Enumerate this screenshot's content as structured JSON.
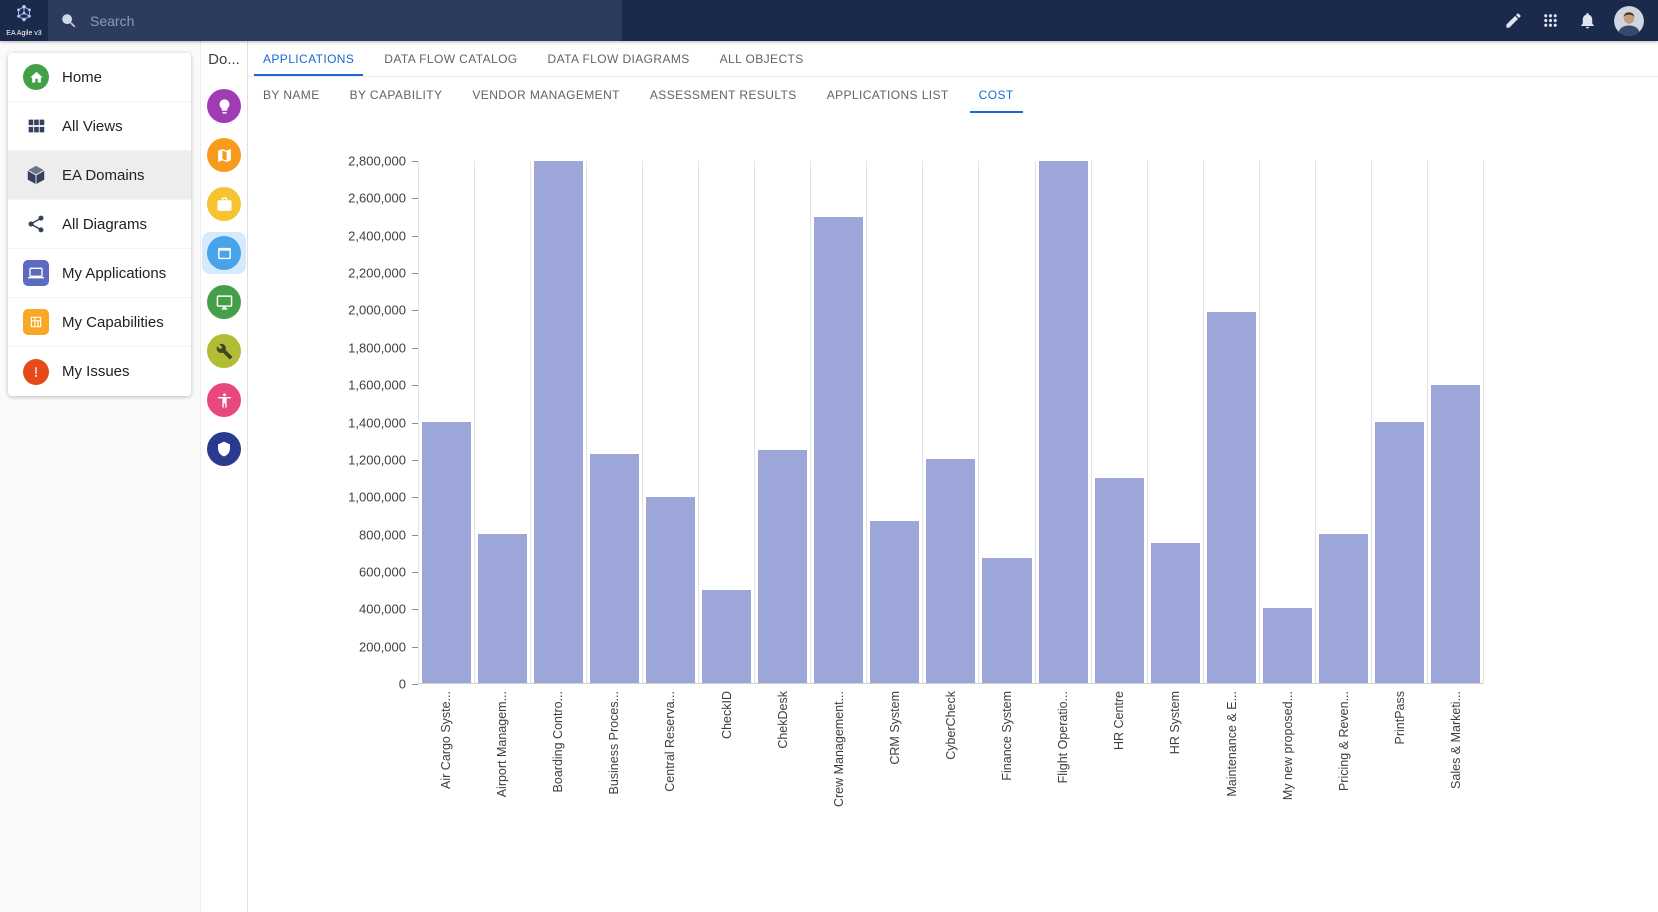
{
  "topbar": {
    "logo_text": "EA Agile v3",
    "search_placeholder": "Search",
    "action_icons": [
      "edit-icon",
      "apps-grid-icon",
      "notifications-icon",
      "user-avatar"
    ]
  },
  "colors": {
    "topbar_bg": "#1b2a4a",
    "search_bg": "#2c3b5e",
    "accent": "#1967d2",
    "sidebar_selected_bg": "#ededed",
    "rail_selected_bg": "#d7eafb"
  },
  "sidebar": {
    "items": [
      {
        "label": "Home",
        "icon": "home-icon",
        "color": "#43a047",
        "selected": false
      },
      {
        "label": "All Views",
        "icon": "views-grid-icon",
        "color": "#33415e",
        "selected": false
      },
      {
        "label": "EA Domains",
        "icon": "cube-icon",
        "color": "#33415e",
        "selected": true
      },
      {
        "label": "All Diagrams",
        "icon": "diagram-icon",
        "color": "#33415e",
        "selected": false
      },
      {
        "label": "My Applications",
        "icon": "laptop-icon",
        "color": "#5c6bc0",
        "selected": false
      },
      {
        "label": "My Capabilities",
        "icon": "capability-grid-icon",
        "color": "#f9a825",
        "selected": false
      },
      {
        "label": "My Issues",
        "icon": "issue-exclamation-icon",
        "color": "#e64a19",
        "selected": false
      }
    ]
  },
  "domain_rail": {
    "header": "Do...",
    "items": [
      {
        "icon": "lightbulb-icon",
        "color": "#a13bb5",
        "selected": false
      },
      {
        "icon": "map-icon",
        "color": "#f89b1c",
        "selected": false
      },
      {
        "icon": "briefcase-icon",
        "color": "#f6c431",
        "selected": false
      },
      {
        "icon": "app-window-icon",
        "color": "#47a4ea",
        "selected": true
      },
      {
        "icon": "monitor-icon",
        "color": "#43a047",
        "selected": false
      },
      {
        "icon": "wrench-icon",
        "color": "#b2bc35",
        "selected": false
      },
      {
        "icon": "person-icon",
        "color": "#e8487c",
        "selected": false
      },
      {
        "icon": "shield-icon",
        "color": "#2b3a8f",
        "selected": false
      }
    ]
  },
  "tabs_primary": [
    {
      "label": "APPLICATIONS",
      "active": true
    },
    {
      "label": "DATA FLOW CATALOG",
      "active": false
    },
    {
      "label": "DATA FLOW DIAGRAMS",
      "active": false
    },
    {
      "label": "ALL OBJECTS",
      "active": false
    }
  ],
  "tabs_secondary": [
    {
      "label": "BY NAME",
      "active": false
    },
    {
      "label": "BY CAPABILITY",
      "active": false
    },
    {
      "label": "VENDOR MANAGEMENT",
      "active": false
    },
    {
      "label": "ASSESSMENT RESULTS",
      "active": false
    },
    {
      "label": "APPLICATIONS LIST",
      "active": false
    },
    {
      "label": "COST",
      "active": true
    }
  ],
  "chart_data": {
    "type": "bar",
    "categories": [
      "Air Cargo Syste...",
      "Airport Managem...",
      "Boarding Contro...",
      "Business Proces...",
      "Central Reserva...",
      "CheckID",
      "ChekDesk",
      "Crew Management...",
      "CRM System",
      "CyberCheck",
      "Finance System",
      "Flight Operatio...",
      "HR Centre",
      "HR System",
      "Maintenance & E...",
      "My new proposed...",
      "Pricing & Reven...",
      "PrintPass",
      "Sales & Marketi..."
    ],
    "values": [
      1400000,
      800000,
      2800000,
      1230000,
      1000000,
      500000,
      1250000,
      2500000,
      870000,
      1200000,
      670000,
      2800000,
      1100000,
      750000,
      1990000,
      400000,
      800000,
      1400000,
      1600000
    ],
    "ylim": [
      0,
      2800000
    ],
    "ytick_step": 200000,
    "bar_color": "#9da6d8",
    "grid": "vertical",
    "xlabel": "",
    "ylabel": "",
    "legend": "none"
  }
}
